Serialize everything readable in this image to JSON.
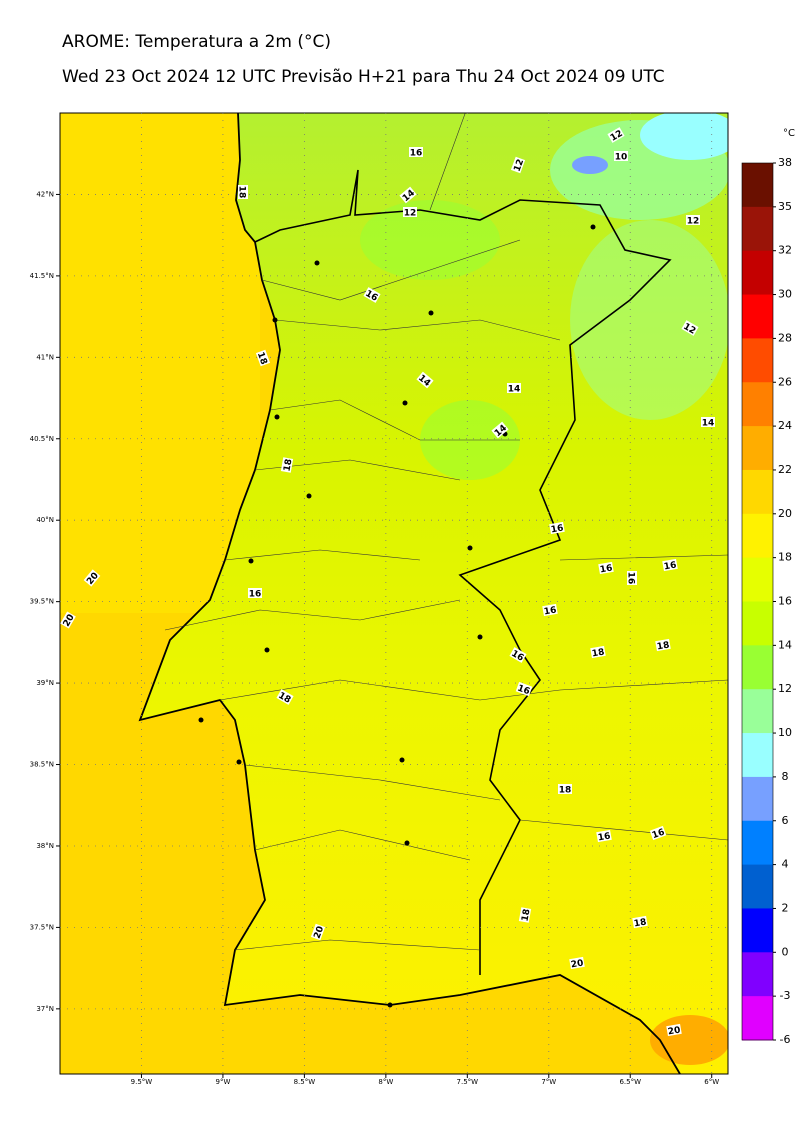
{
  "title": "AROME: Temperatura a 2m (°C)",
  "subtitle": "Wed 23 Oct 2024 12 UTC Previsão H+21 para Thu 24 Oct 2024 09 UTC",
  "map": {
    "xlim": [
      -10,
      -5.9
    ],
    "ylim": [
      36.6,
      42.5
    ],
    "xticks": [
      {
        "value": -9.5,
        "label": "9.5°W"
      },
      {
        "value": -9,
        "label": "9°W"
      },
      {
        "value": -8.5,
        "label": "8.5°W"
      },
      {
        "value": -8,
        "label": "8°W"
      },
      {
        "value": -7.5,
        "label": "7.5°W"
      },
      {
        "value": -7,
        "label": "7°W"
      },
      {
        "value": -6.5,
        "label": "6.5°W"
      },
      {
        "value": -6,
        "label": "6°W"
      }
    ],
    "yticks": [
      {
        "value": 42,
        "label": "42°N"
      },
      {
        "value": 41.5,
        "label": "41.5°N"
      },
      {
        "value": 41,
        "label": "41°N"
      },
      {
        "value": 40.5,
        "label": "40.5°N"
      },
      {
        "value": 40,
        "label": "40°N"
      },
      {
        "value": 39.5,
        "label": "39.5°N"
      },
      {
        "value": 39,
        "label": "39°N"
      },
      {
        "value": 38.5,
        "label": "38.5°N"
      },
      {
        "value": 38,
        "label": "38°N"
      },
      {
        "value": 37.5,
        "label": "37.5°N"
      },
      {
        "value": 37,
        "label": "37°N"
      }
    ],
    "contour_labels": [
      12,
      16,
      12,
      10,
      18,
      14,
      12,
      12,
      16,
      12,
      18,
      14,
      14,
      14,
      14,
      18,
      16,
      16,
      16,
      16,
      20,
      20,
      16,
      16,
      16,
      18,
      18,
      16,
      18,
      18,
      16,
      16,
      18,
      18,
      20,
      20,
      20
    ]
  },
  "colorbar": {
    "unit": "°C",
    "ticks": [
      38,
      35,
      32,
      30,
      28,
      26,
      24,
      22,
      20,
      18,
      16,
      14,
      12,
      10,
      8,
      6,
      4,
      2,
      0,
      -3,
      -6
    ],
    "colors": [
      "#6a1000",
      "#9a1408",
      "#c40000",
      "#ff0000",
      "#ff4c00",
      "#ff8000",
      "#ffad00",
      "#ffd800",
      "#fff200",
      "#e6ff00",
      "#c8ff00",
      "#99ff33",
      "#99ff99",
      "#99ffff",
      "#77a0ff",
      "#0080ff",
      "#0060d0",
      "#0000ff",
      "#8000ff",
      "#e000ff"
    ]
  }
}
